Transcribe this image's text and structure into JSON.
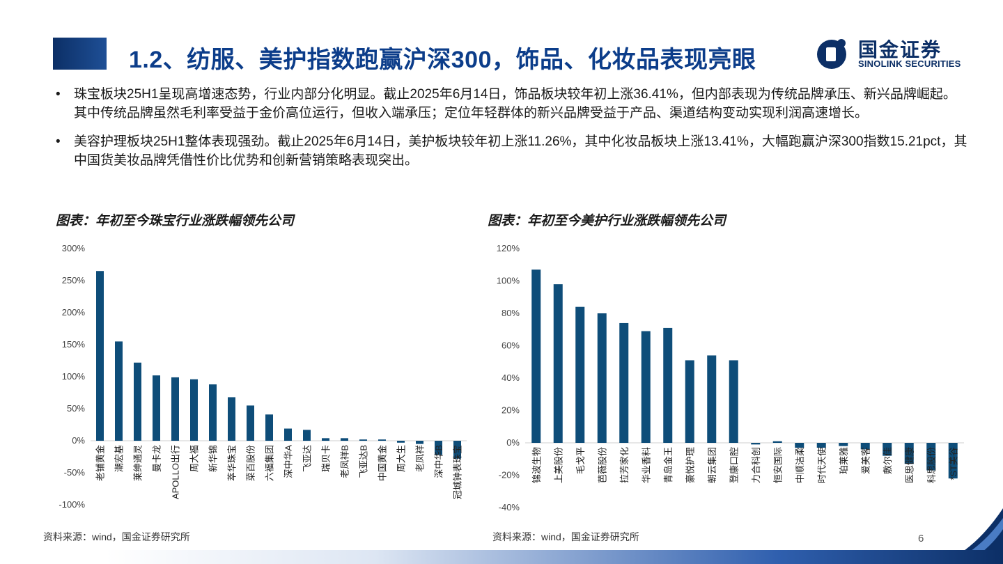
{
  "header": {
    "title": "1.2、纺服、美护指数跑赢沪深300，饰品、化妆品表现亮眼",
    "logo_cn": "国金证券",
    "logo_en": "SINOLINK SECURITIES"
  },
  "bullets": [
    {
      "marker": "•",
      "text": "珠宝板块25H1呈现高增速态势，行业内部分化明显。截止2025年6月14日，饰品板块较年初上涨36.41%，但内部表现为传统品牌承压、新兴品牌崛起。其中传统品牌虽然毛利率受益于金价高位运行，但收入端承压；定位年轻群体的新兴品牌受益于产品、渠道结构变动实现利润高速增长。"
    },
    {
      "marker": "•",
      "text": "美容护理板块25H1整体表现强劲。截止2025年6月14日，美护板块较年初上涨11.26%，其中化妆品板块上涨13.41%，大幅跑赢沪深300指数15.21pct，其中国货美妆品牌凭借性价比优势和创新营销策略表现突出。"
    }
  ],
  "charts": {
    "left_title": "图表：年初至今珠宝行业涨跌幅领先公司",
    "right_title": "图表：年初至今美护行业涨跌幅领先公司",
    "left_source": "资料来源：wind，国金证券研究所",
    "right_source": "资料来源：wind，国金证券研究所"
  },
  "chart_data": [
    {
      "type": "bar",
      "title": "图表：年初至今珠宝行业涨跌幅领先公司",
      "categories": [
        "老铺黄金",
        "潮宏基",
        "莱绅通灵",
        "曼卡龙",
        "APOLLO出行",
        "周大福",
        "新华锦",
        "萃华珠宝",
        "菜百股份",
        "六福集团",
        "深中华A",
        "飞亚达",
        "瑞贝卡",
        "老凤祥B",
        "飞亚达B",
        "中国黄金",
        "周大生",
        "老凤祥",
        "深中华B",
        "冠城钟表珠宝"
      ],
      "values": [
        265,
        155,
        122,
        102,
        99,
        96,
        88,
        68,
        55,
        41,
        19,
        17,
        4,
        4,
        2,
        2,
        -3,
        -5,
        -22,
        -28
      ],
      "yticks": [
        "300%",
        "250%",
        "200%",
        "150%",
        "100%",
        "50%",
        "0%",
        "-50%",
        "-100%"
      ],
      "ylim": [
        -100,
        300
      ],
      "unit": "%",
      "color": "#0e4d79"
    },
    {
      "type": "bar",
      "title": "图表：年初至今美护行业涨跌幅领先公司",
      "categories": [
        "锦波生物",
        "上美股份",
        "毛戈平",
        "芭薇股份",
        "拉芳家化",
        "华业香料",
        "青岛金王",
        "豪悦护理",
        "朝云集团",
        "登康口腔",
        "力合科创",
        "恒安国际",
        "中顺洁柔",
        "时代天使",
        "珀莱雅",
        "爱美客",
        "敷尔佳",
        "医思健康",
        "科思股份",
        "*ST美谷"
      ],
      "values": [
        107,
        98,
        84,
        80,
        74,
        69,
        71,
        51,
        54,
        51,
        -1,
        1,
        -3,
        -3,
        -2,
        -4,
        -8,
        -13,
        -17,
        -22
      ],
      "yticks": [
        "120%",
        "100%",
        "80%",
        "60%",
        "40%",
        "20%",
        "0%",
        "-20%",
        "-40%"
      ],
      "ylim": [
        -40,
        120
      ],
      "unit": "%",
      "color": "#0e4d79"
    }
  ],
  "footer": {
    "page_number": "6"
  },
  "colors": {
    "brand": "#0c3d8a",
    "bar": "#0e4d79"
  }
}
